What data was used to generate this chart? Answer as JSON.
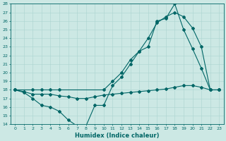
{
  "xlabel": "Humidex (Indice chaleur)",
  "bg_color": "#cce8e4",
  "line_color": "#006666",
  "grid_color": "#aad4d0",
  "ylim": [
    14,
    28
  ],
  "xlim": [
    -0.5,
    23.5
  ],
  "yticks": [
    14,
    15,
    16,
    17,
    18,
    19,
    20,
    21,
    22,
    23,
    24,
    25,
    26,
    27,
    28
  ],
  "xticks": [
    0,
    1,
    2,
    3,
    4,
    5,
    6,
    7,
    8,
    9,
    10,
    11,
    12,
    13,
    14,
    15,
    16,
    17,
    18,
    19,
    20,
    21,
    22,
    23
  ],
  "line1_x": [
    0,
    1,
    2,
    3,
    4,
    5,
    6,
    7,
    8,
    9,
    10,
    11,
    12,
    13,
    14,
    15,
    16,
    17,
    18,
    19,
    20,
    21,
    22,
    23
  ],
  "line1_y": [
    18,
    17.7,
    17.0,
    16.2,
    16.0,
    15.5,
    14.5,
    13.8,
    13.8,
    16.2,
    16.2,
    18.5,
    19.5,
    21.0,
    22.5,
    23.0,
    26.0,
    26.3,
    28.0,
    25.0,
    22.8,
    20.5,
    18.0,
    18.0
  ],
  "line2_x": [
    0,
    2,
    3,
    4,
    5,
    10,
    11,
    12,
    13,
    14,
    15,
    16,
    17,
    18,
    19,
    20,
    21,
    22,
    23
  ],
  "line2_y": [
    18,
    18,
    18,
    18,
    18,
    18,
    19.0,
    20.0,
    21.5,
    22.5,
    24.0,
    25.8,
    26.5,
    27.0,
    26.5,
    25.2,
    23.0,
    18.0,
    18.0
  ],
  "line3_x": [
    0,
    1,
    2,
    3,
    4,
    5,
    6,
    7,
    8,
    9,
    10,
    11,
    12,
    13,
    14,
    15,
    16,
    17,
    18,
    19,
    20,
    21,
    22,
    23
  ],
  "line3_y": [
    18.0,
    17.8,
    17.5,
    17.5,
    17.5,
    17.3,
    17.2,
    17.0,
    17.0,
    17.2,
    17.4,
    17.5,
    17.6,
    17.7,
    17.8,
    17.9,
    18.0,
    18.1,
    18.3,
    18.5,
    18.5,
    18.3,
    18.0,
    18.0
  ]
}
